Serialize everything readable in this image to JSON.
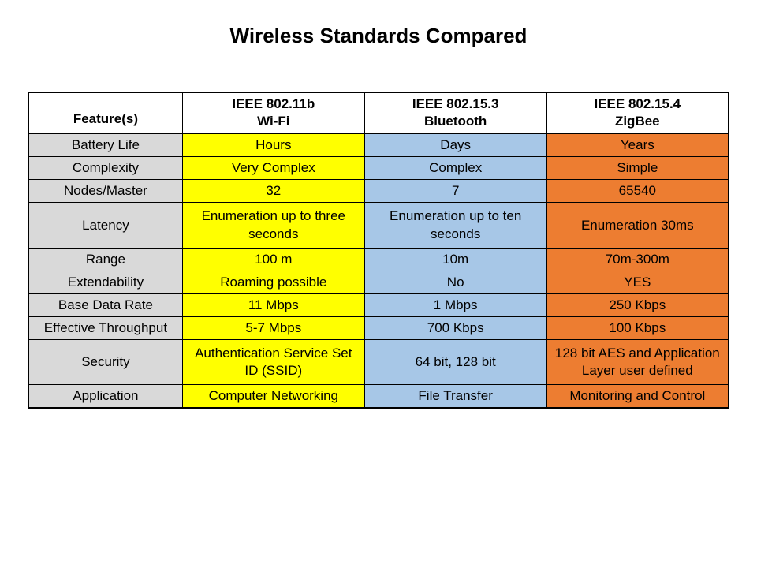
{
  "page": {
    "title": "Wireless Standards Compared",
    "background_color": "#ffffff",
    "title_fontsize": 26
  },
  "table": {
    "type": "table",
    "border_color": "#000000",
    "feature_col_bg": "#d9d9d9",
    "column_colors": {
      "wifi": "#ffff00",
      "bluetooth": "#a7c7e7",
      "zigbee": "#ed7d31"
    },
    "header": {
      "feature_label": "Feature(s)",
      "columns": [
        {
          "line1": "IEEE 802.11b",
          "line2": "Wi-Fi"
        },
        {
          "line1": "IEEE 802.15.3",
          "line2": "Bluetooth"
        },
        {
          "line1": "IEEE 802.15.4",
          "line2": "ZigBee"
        }
      ]
    },
    "rows": [
      {
        "feature": "Battery Life",
        "wifi": "Hours",
        "bluetooth": "Days",
        "zigbee": "Years"
      },
      {
        "feature": "Complexity",
        "wifi": "Very Complex",
        "bluetooth": "Complex",
        "zigbee": "Simple"
      },
      {
        "feature": "Nodes/Master",
        "wifi": "32",
        "bluetooth": "7",
        "zigbee": "65540"
      },
      {
        "feature": "Latency",
        "wifi": "Enumeration up to three seconds",
        "bluetooth": "Enumeration up to ten seconds",
        "zigbee": "Enumeration 30ms"
      },
      {
        "feature": "Range",
        "wifi": "100 m",
        "bluetooth": "10m",
        "zigbee": "70m-300m"
      },
      {
        "feature": "Extendability",
        "wifi": "Roaming possible",
        "bluetooth": "No",
        "zigbee": "YES"
      },
      {
        "feature": "Base Data Rate",
        "wifi": "11 Mbps",
        "bluetooth": "1 Mbps",
        "zigbee": "250 Kbps"
      },
      {
        "feature": "Effective Throughput",
        "wifi": "5-7 Mbps",
        "bluetooth": "700 Kbps",
        "zigbee": "100 Kbps"
      },
      {
        "feature": "Security",
        "wifi": "Authentication Service Set ID (SSID)",
        "bluetooth": "64 bit, 128 bit",
        "zigbee": "128 bit AES and Application Layer user defined"
      },
      {
        "feature": "Application",
        "wifi": "Computer Networking",
        "bluetooth": "File Transfer",
        "zigbee": "Monitoring and Control"
      }
    ],
    "column_widths": [
      "22%",
      "26%",
      "26%",
      "26%"
    ],
    "cell_fontsize": 17,
    "header_fontsize": 18,
    "tall_rows": [
      3,
      8
    ]
  }
}
